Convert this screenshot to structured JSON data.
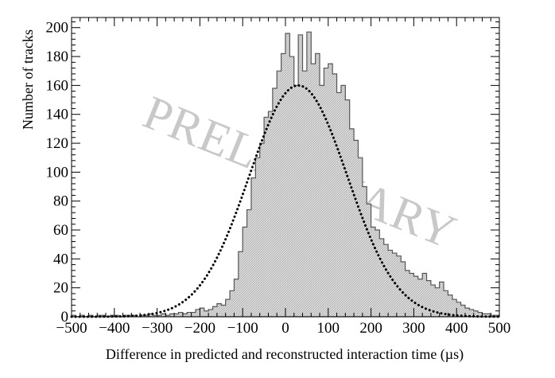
{
  "chart_data": {
    "type": "histogram",
    "xlabel": "Difference in predicted and reconstructed interaction time (µs)",
    "ylabel": "Number of tracks",
    "xlim": [
      -500,
      500
    ],
    "ylim": [
      0,
      207
    ],
    "x_ticks": [
      -500,
      -400,
      -300,
      -200,
      -100,
      0,
      100,
      200,
      300,
      400,
      500
    ],
    "x_tick_labels": [
      "−500",
      "−400",
      "−300",
      "−200",
      "−100",
      "0",
      "100",
      "200",
      "300",
      "400",
      "500"
    ],
    "y_ticks": [
      0,
      20,
      40,
      60,
      80,
      100,
      120,
      140,
      160,
      180,
      200
    ],
    "y_tick_labels": [
      "0",
      "20",
      "40",
      "60",
      "80",
      "100",
      "120",
      "140",
      "160",
      "180",
      "200"
    ],
    "watermark": "PRELIMINARY",
    "histogram": {
      "bin_width": 10,
      "bin_edges_start": -500,
      "counts": [
        1,
        0,
        1,
        0,
        1,
        0,
        1,
        1,
        0,
        1,
        1,
        0,
        1,
        1,
        1,
        0,
        1,
        1,
        2,
        1,
        1,
        2,
        1,
        2,
        2,
        3,
        2,
        3,
        3,
        5,
        6,
        4,
        5,
        7,
        9,
        8,
        12,
        18,
        26,
        45,
        62,
        74,
        96,
        110,
        120,
        138,
        142,
        158,
        170,
        182,
        196,
        180,
        160,
        195,
        170,
        197,
        175,
        182,
        160,
        172,
        175,
        168,
        155,
        160,
        150,
        130,
        122,
        110,
        90,
        78,
        62,
        60,
        54,
        50,
        46,
        44,
        42,
        38,
        32,
        30,
        28,
        26,
        30,
        25,
        22,
        20,
        24,
        18,
        15,
        12,
        10,
        8,
        6,
        5,
        4,
        3,
        2,
        2,
        1,
        1
      ]
    },
    "fit": {
      "type": "gaussian",
      "style": "dotted",
      "amplitude": 160,
      "mean": 30,
      "sigma": 115
    },
    "grid": false,
    "colors": {
      "fill": "#d4d4d4",
      "outline": "#555555",
      "fit": "#000000",
      "watermark": "#c8c8c8"
    }
  }
}
